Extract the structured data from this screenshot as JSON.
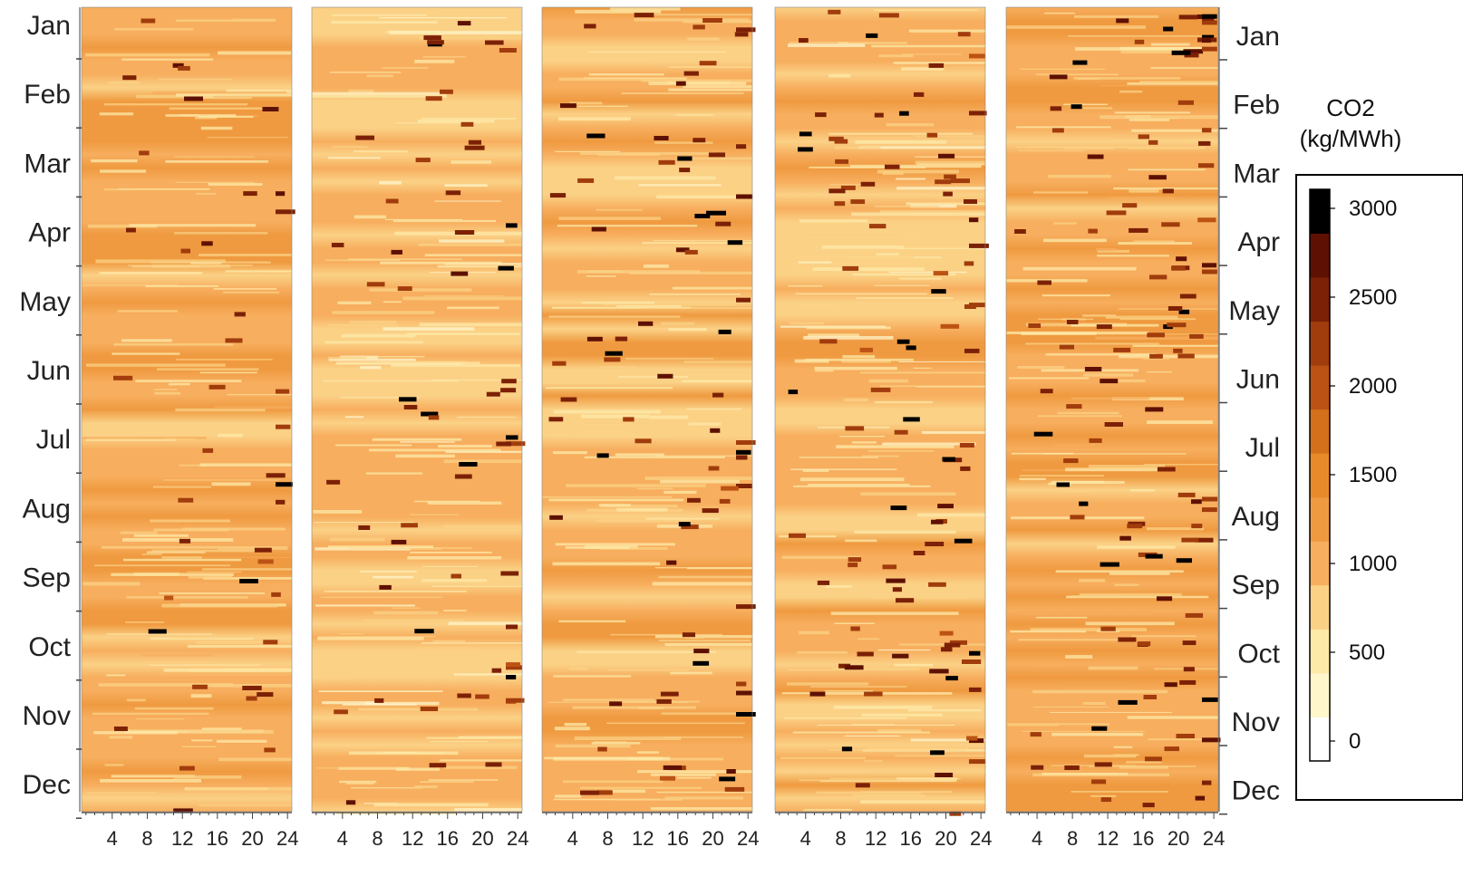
{
  "chart_data": {
    "type": "heatmap",
    "title": "",
    "panel_count": 5,
    "x_tick_labels": [
      "4",
      "8",
      "12",
      "16",
      "20",
      "24"
    ],
    "x_range": [
      0,
      24
    ],
    "y_tick_labels_left": [
      "Jan",
      "Feb",
      "Mar",
      "Apr",
      "May",
      "Jun",
      "Jul",
      "Aug",
      "Sep",
      "Oct",
      "Nov",
      "Dec"
    ],
    "y_tick_labels_right": [
      "Jan",
      "Feb",
      "Mar",
      "Apr",
      "May",
      "Jun",
      "Jul",
      "Aug",
      "Sep",
      "Oct",
      "Nov",
      "Dec"
    ],
    "colorbar": {
      "title_line1": "CO2",
      "title_line2": "(kg/MWh)",
      "range": [
        0,
        3000
      ],
      "tick_labels": [
        "3000",
        "2500",
        "2000",
        "1500",
        "1000",
        "500",
        "0"
      ],
      "colors": [
        "#ffffff",
        "#fff6cc",
        "#fde9a8",
        "#fbd186",
        "#f7ae5e",
        "#ef9a40",
        "#e98a2a",
        "#d4701b",
        "#bc5214",
        "#a13c0c",
        "#7c2106",
        "#5e1103",
        "#000000"
      ]
    },
    "panel_base_levels": [
      1150,
      1000,
      1100,
      1050,
      1180
    ],
    "grid": false,
    "legend": "right"
  }
}
